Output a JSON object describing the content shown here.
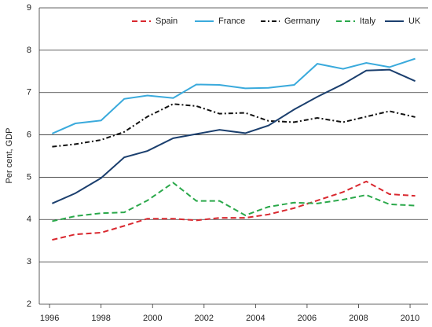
{
  "chart_data": {
    "type": "line",
    "ylabel": "Per cent, GDP",
    "x": [
      1996.1,
      1997.0,
      1998.0,
      1998.9,
      1999.8,
      2000.8,
      2001.7,
      2002.6,
      2003.6,
      2004.5,
      2005.5,
      2006.4,
      2007.4,
      2008.3,
      2009.2,
      2010.2
    ],
    "xlim": [
      1995.6,
      2010.7
    ],
    "xticks": [
      1996,
      1998,
      2000,
      2002,
      2004,
      2006,
      2008,
      2010
    ],
    "ylim": [
      2,
      9
    ],
    "yticks": [
      2,
      3,
      4,
      5,
      6,
      7,
      8,
      9
    ],
    "grid": true,
    "legend": "top",
    "series": [
      {
        "name": "Spain",
        "color": "#d9282f",
        "dash": "7,4",
        "values": [
          3.52,
          3.65,
          3.69,
          3.85,
          4.02,
          4.02,
          3.98,
          4.04,
          4.04,
          4.12,
          4.27,
          4.45,
          4.65,
          4.9,
          4.6,
          4.56
        ]
      },
      {
        "name": "France",
        "color": "#3aaadc",
        "dash": "none",
        "values": [
          6.03,
          6.27,
          6.34,
          6.85,
          6.93,
          6.87,
          7.19,
          7.18,
          7.1,
          7.11,
          7.18,
          7.68,
          7.56,
          7.7,
          7.6,
          7.8
        ]
      },
      {
        "name": "Germany",
        "color": "#111111",
        "dash": "6,3,2,3",
        "values": [
          5.72,
          5.78,
          5.88,
          6.07,
          6.43,
          6.73,
          6.68,
          6.5,
          6.52,
          6.33,
          6.3,
          6.4,
          6.3,
          6.43,
          6.56,
          6.42
        ]
      },
      {
        "name": "Italy",
        "color": "#2aa84a",
        "dash": "7,4",
        "values": [
          3.96,
          4.08,
          4.15,
          4.17,
          4.45,
          4.87,
          4.44,
          4.44,
          4.1,
          4.3,
          4.4,
          4.38,
          4.47,
          4.58,
          4.36,
          4.33
        ]
      },
      {
        "name": "UK",
        "color": "#1b3f6e",
        "dash": "none",
        "values": [
          4.38,
          4.62,
          4.98,
          5.47,
          5.62,
          5.92,
          6.02,
          6.12,
          6.04,
          6.22,
          6.6,
          6.9,
          7.2,
          7.52,
          7.54,
          7.27
        ]
      }
    ]
  }
}
